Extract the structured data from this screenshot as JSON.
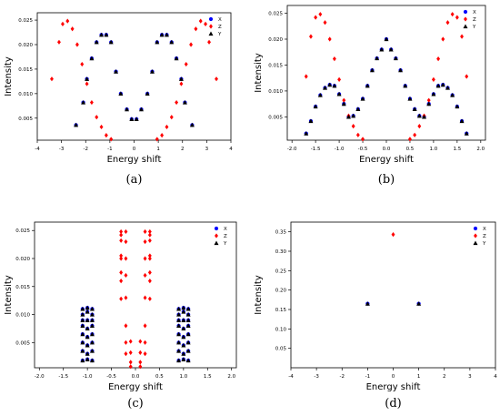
{
  "chart_data": [
    {
      "type": "scatter",
      "caption": "(a)",
      "xlabel": "Energy shift",
      "ylabel": "Intensity",
      "xlim": [
        -4,
        4
      ],
      "ylim": [
        0.0005,
        0.0265
      ],
      "xticks": [
        -4,
        -3,
        -2,
        -1,
        0,
        1,
        2,
        3,
        4
      ],
      "yticks": [
        0.005,
        0.01,
        0.015,
        0.02,
        0.025
      ],
      "grid": false,
      "legend_position": "top-right",
      "series": [
        {
          "name": "X",
          "marker": "circle",
          "color": "#0000ff",
          "x": [
            -2.4,
            -2.1,
            -1.95,
            -1.75,
            -1.55,
            -1.35,
            -1.15,
            -0.95,
            -0.75,
            -0.55,
            -0.3,
            -0.1,
            0.1,
            0.3,
            0.55,
            0.75,
            0.95,
            1.15,
            1.35,
            1.55,
            1.75,
            1.95,
            2.1,
            2.4
          ],
          "y": [
            0.0036,
            0.0082,
            0.013,
            0.0172,
            0.0205,
            0.022,
            0.022,
            0.0205,
            0.0145,
            0.01,
            0.0068,
            0.0048,
            0.0048,
            0.0068,
            0.01,
            0.0145,
            0.0205,
            0.022,
            0.022,
            0.0205,
            0.0172,
            0.013,
            0.0082,
            0.0036
          ]
        },
        {
          "name": "Z",
          "marker": "diamond",
          "color": "#ff0000",
          "x": [
            -3.4,
            -3.1,
            -2.95,
            -2.75,
            -2.55,
            -2.35,
            -2.15,
            -1.95,
            -1.75,
            -1.55,
            -1.35,
            -1.15,
            -0.95,
            0.95,
            1.15,
            1.35,
            1.55,
            1.75,
            1.95,
            2.15,
            2.35,
            2.55,
            2.75,
            2.95,
            3.1,
            3.4
          ],
          "y": [
            0.013,
            0.0205,
            0.0242,
            0.0248,
            0.0232,
            0.02,
            0.016,
            0.012,
            0.0082,
            0.0052,
            0.0032,
            0.0015,
            0.0007,
            0.0007,
            0.0015,
            0.0032,
            0.0052,
            0.0082,
            0.012,
            0.016,
            0.02,
            0.0232,
            0.0248,
            0.0242,
            0.0205,
            0.013
          ]
        },
        {
          "name": "Y",
          "marker": "triangle",
          "color": "#000000",
          "x": [
            -2.4,
            -2.1,
            -1.95,
            -1.75,
            -1.55,
            -1.35,
            -1.15,
            -0.95,
            -0.75,
            -0.55,
            -0.3,
            -0.1,
            0.1,
            0.3,
            0.55,
            0.75,
            0.95,
            1.15,
            1.35,
            1.55,
            1.75,
            1.95,
            2.1,
            2.4
          ],
          "y": [
            0.0036,
            0.0082,
            0.013,
            0.0172,
            0.0205,
            0.022,
            0.022,
            0.0205,
            0.0145,
            0.01,
            0.0068,
            0.0048,
            0.0048,
            0.0068,
            0.01,
            0.0145,
            0.0205,
            0.022,
            0.022,
            0.0205,
            0.0172,
            0.013,
            0.0082,
            0.0036
          ]
        }
      ]
    },
    {
      "type": "scatter",
      "caption": "(b)",
      "xlabel": "Energy shift",
      "ylabel": "Intensity",
      "xlim": [
        -2.1,
        2.1
      ],
      "ylim": [
        0.0005,
        0.0265
      ],
      "xticks": [
        -2.0,
        -1.5,
        -1.0,
        -0.5,
        0.0,
        0.5,
        1.0,
        1.5,
        2.0
      ],
      "yticks": [
        0.005,
        0.01,
        0.015,
        0.02,
        0.025
      ],
      "grid": false,
      "legend_position": "top-right",
      "series": [
        {
          "name": "X",
          "marker": "circle",
          "color": "#0000ff",
          "x": [
            -1.7,
            -1.6,
            -1.5,
            -1.4,
            -1.3,
            -1.2,
            -1.1,
            -1.0,
            -0.9,
            -0.8,
            -0.7,
            -0.6,
            -0.5,
            -0.4,
            -0.3,
            -0.2,
            -0.1,
            0.0,
            0.1,
            0.2,
            0.3,
            0.4,
            0.5,
            0.6,
            0.7,
            0.8,
            0.9,
            1.0,
            1.1,
            1.2,
            1.3,
            1.4,
            1.5,
            1.6,
            1.7
          ],
          "y": [
            0.0018,
            0.0042,
            0.007,
            0.0092,
            0.0106,
            0.0112,
            0.011,
            0.0094,
            0.0075,
            0.005,
            0.0052,
            0.0065,
            0.0085,
            0.011,
            0.014,
            0.0163,
            0.018,
            0.02,
            0.018,
            0.0163,
            0.014,
            0.011,
            0.0085,
            0.0065,
            0.0052,
            0.005,
            0.0075,
            0.0094,
            0.011,
            0.0112,
            0.0106,
            0.0092,
            0.007,
            0.0042,
            0.0018
          ]
        },
        {
          "name": "Z",
          "marker": "diamond",
          "color": "#ff0000",
          "x": [
            -1.7,
            -1.6,
            -1.5,
            -1.4,
            -1.3,
            -1.2,
            -1.1,
            -1.0,
            -0.9,
            -0.8,
            -0.7,
            -0.6,
            -0.5,
            0.5,
            0.6,
            0.7,
            0.8,
            0.9,
            1.0,
            1.1,
            1.2,
            1.3,
            1.4,
            1.5,
            1.6,
            1.7
          ],
          "y": [
            0.0128,
            0.0205,
            0.0242,
            0.0248,
            0.0232,
            0.02,
            0.0162,
            0.0122,
            0.0082,
            0.0052,
            0.0032,
            0.0015,
            0.0007,
            0.0007,
            0.0015,
            0.0032,
            0.0052,
            0.0082,
            0.0122,
            0.0162,
            0.02,
            0.0232,
            0.0248,
            0.0242,
            0.0205,
            0.0128
          ]
        },
        {
          "name": "Y",
          "marker": "triangle",
          "color": "#000000",
          "x": [
            -1.7,
            -1.6,
            -1.5,
            -1.4,
            -1.3,
            -1.2,
            -1.1,
            -1.0,
            -0.9,
            -0.8,
            -0.7,
            -0.6,
            -0.5,
            -0.4,
            -0.3,
            -0.2,
            -0.1,
            0.0,
            0.1,
            0.2,
            0.3,
            0.4,
            0.5,
            0.6,
            0.7,
            0.8,
            0.9,
            1.0,
            1.1,
            1.2,
            1.3,
            1.4,
            1.5,
            1.6,
            1.7
          ],
          "y": [
            0.0018,
            0.0042,
            0.007,
            0.0092,
            0.0106,
            0.0112,
            0.011,
            0.0094,
            0.0075,
            0.005,
            0.0052,
            0.0065,
            0.0085,
            0.011,
            0.014,
            0.0163,
            0.018,
            0.02,
            0.018,
            0.0163,
            0.014,
            0.011,
            0.0085,
            0.0065,
            0.0052,
            0.005,
            0.0075,
            0.0094,
            0.011,
            0.0112,
            0.0106,
            0.0092,
            0.007,
            0.0042,
            0.0018
          ]
        }
      ]
    },
    {
      "type": "scatter",
      "caption": "(c)",
      "xlabel": "Energy shift",
      "ylabel": "Intensity",
      "xlim": [
        -2.1,
        2.1
      ],
      "ylim": [
        0.0005,
        0.0265
      ],
      "xticks": [
        -2.0,
        -1.5,
        -1.0,
        -0.5,
        0.0,
        0.5,
        1.0,
        1.5,
        2.0
      ],
      "yticks": [
        0.005,
        0.01,
        0.015,
        0.02,
        0.025
      ],
      "grid": false,
      "legend_position": "top-right",
      "series": [
        {
          "name": "X",
          "marker": "circle",
          "color": "#0000ff",
          "x": [
            -1.1,
            -1.1,
            -1.1,
            -1.1,
            -1.1,
            -1.1,
            -1.1,
            -1.1,
            -1.0,
            -1.0,
            -1.0,
            -1.0,
            -1.0,
            -1.0,
            -1.0,
            -1.0,
            -0.9,
            -0.9,
            -0.9,
            -0.9,
            -0.9,
            -0.9,
            -0.9,
            -0.9,
            0.9,
            0.9,
            0.9,
            0.9,
            0.9,
            0.9,
            0.9,
            0.9,
            1.0,
            1.0,
            1.0,
            1.0,
            1.0,
            1.0,
            1.0,
            1.0,
            1.1,
            1.1,
            1.1,
            1.1,
            1.1,
            1.1,
            1.1,
            1.1
          ],
          "y": [
            0.0018,
            0.0035,
            0.005,
            0.0065,
            0.008,
            0.009,
            0.01,
            0.011,
            0.002,
            0.003,
            0.0045,
            0.006,
            0.0075,
            0.009,
            0.0105,
            0.0112,
            0.0018,
            0.0035,
            0.005,
            0.0065,
            0.008,
            0.009,
            0.01,
            0.011,
            0.0018,
            0.0035,
            0.005,
            0.0065,
            0.008,
            0.009,
            0.01,
            0.011,
            0.002,
            0.003,
            0.0045,
            0.006,
            0.0075,
            0.009,
            0.0105,
            0.0112,
            0.0018,
            0.0035,
            0.005,
            0.0065,
            0.008,
            0.009,
            0.01,
            0.011
          ]
        },
        {
          "name": "Z",
          "marker": "diamond",
          "color": "#ff0000",
          "x": [
            -0.3,
            -0.3,
            -0.3,
            -0.3,
            -0.3,
            -0.3,
            -0.3,
            -0.3,
            -0.2,
            -0.2,
            -0.2,
            -0.2,
            -0.2,
            -0.2,
            -0.2,
            -0.2,
            -0.1,
            -0.1,
            -0.1,
            -0.1,
            0.1,
            0.1,
            0.1,
            0.1,
            0.2,
            0.2,
            0.2,
            0.2,
            0.2,
            0.2,
            0.2,
            0.2,
            0.3,
            0.3,
            0.3,
            0.3,
            0.3,
            0.3,
            0.3,
            0.3
          ],
          "y": [
            0.0128,
            0.016,
            0.02,
            0.0232,
            0.0248,
            0.0242,
            0.0205,
            0.0175,
            0.0248,
            0.023,
            0.02,
            0.017,
            0.013,
            0.008,
            0.005,
            0.003,
            0.0052,
            0.0032,
            0.0015,
            0.0007,
            0.0052,
            0.0032,
            0.0015,
            0.0007,
            0.0248,
            0.023,
            0.02,
            0.017,
            0.013,
            0.008,
            0.005,
            0.003,
            0.0128,
            0.016,
            0.02,
            0.0232,
            0.0248,
            0.0242,
            0.0205,
            0.0175
          ]
        },
        {
          "name": "Y",
          "marker": "triangle",
          "color": "#000000",
          "x": [
            -1.1,
            -1.1,
            -1.1,
            -1.1,
            -1.1,
            -1.1,
            -1.1,
            -1.1,
            -1.0,
            -1.0,
            -1.0,
            -1.0,
            -1.0,
            -1.0,
            -1.0,
            -1.0,
            -0.9,
            -0.9,
            -0.9,
            -0.9,
            -0.9,
            -0.9,
            -0.9,
            -0.9,
            0.9,
            0.9,
            0.9,
            0.9,
            0.9,
            0.9,
            0.9,
            0.9,
            1.0,
            1.0,
            1.0,
            1.0,
            1.0,
            1.0,
            1.0,
            1.0,
            1.1,
            1.1,
            1.1,
            1.1,
            1.1,
            1.1,
            1.1,
            1.1
          ],
          "y": [
            0.0018,
            0.0035,
            0.005,
            0.0065,
            0.008,
            0.009,
            0.01,
            0.011,
            0.002,
            0.003,
            0.0045,
            0.006,
            0.0075,
            0.009,
            0.0105,
            0.0112,
            0.0018,
            0.0035,
            0.005,
            0.0065,
            0.008,
            0.009,
            0.01,
            0.011,
            0.0018,
            0.0035,
            0.005,
            0.0065,
            0.008,
            0.009,
            0.01,
            0.011,
            0.002,
            0.003,
            0.0045,
            0.006,
            0.0075,
            0.009,
            0.0105,
            0.0112,
            0.0018,
            0.0035,
            0.005,
            0.0065,
            0.008,
            0.009,
            0.01,
            0.011
          ]
        }
      ]
    },
    {
      "type": "scatter",
      "caption": "(d)",
      "xlabel": "Energy shift",
      "ylabel": "Intensity",
      "xlim": [
        -4,
        4
      ],
      "ylim": [
        0.0,
        0.375
      ],
      "xticks": [
        -4,
        -3,
        -2,
        -1,
        0,
        1,
        2,
        3,
        4
      ],
      "yticks": [
        0.05,
        0.1,
        0.15,
        0.2,
        0.25,
        0.3,
        0.35
      ],
      "grid": false,
      "legend_position": "top-right",
      "series": [
        {
          "name": "X",
          "marker": "circle",
          "color": "#0000ff",
          "x": [
            -1,
            1
          ],
          "y": [
            0.165,
            0.165
          ]
        },
        {
          "name": "Z",
          "marker": "diamond",
          "color": "#ff0000",
          "x": [
            0
          ],
          "y": [
            0.343
          ]
        },
        {
          "name": "Y",
          "marker": "triangle",
          "color": "#000000",
          "x": [
            -1,
            1
          ],
          "y": [
            0.165,
            0.165
          ]
        }
      ]
    }
  ]
}
